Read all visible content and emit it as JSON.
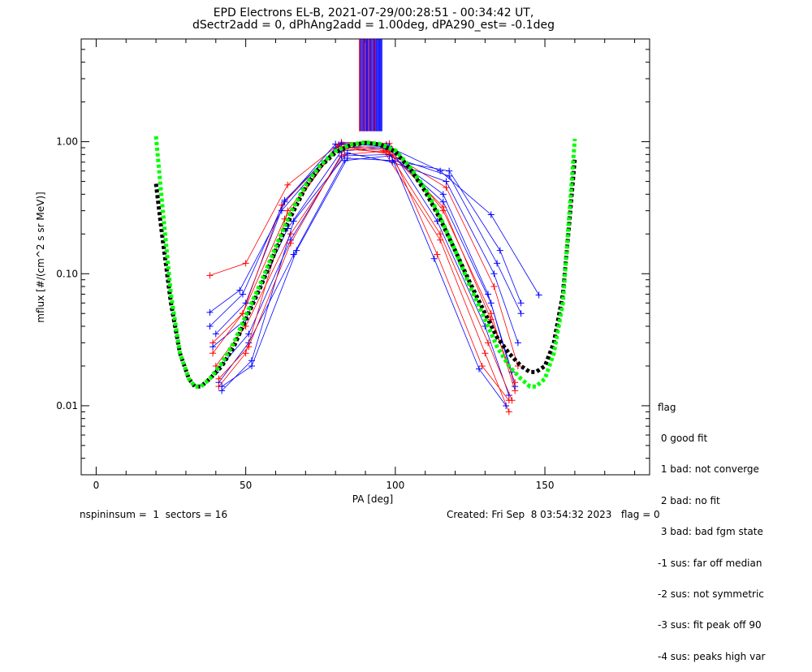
{
  "title_line1": "EPD Electrons EL-B, 2021-07-29/00:28:51 - 00:34:42 UT,",
  "title_line2": "dSectr2add = 0, dPhAng2add = 1.00deg, dPA290_est=  -0.1deg",
  "footer": {
    "left": "nspininsum =  1  sectors = 16",
    "right": "Created: Fri Sep  8 03:54:32 2023   flag = 0"
  },
  "legend": {
    "title": "flag",
    "items": [
      " 0 good fit",
      " 1 bad: not converge",
      " 2 bad: no fit",
      " 3 bad: bad fgm state",
      "-1 sus: far off median",
      "-2 sus: not symmetric",
      "-3 sus: fit peak off 90",
      "-4 sus: peaks high var"
    ]
  },
  "colors": {
    "red": "#ff0000",
    "blue": "#0000ff",
    "green": "#00ff00",
    "black": "#000000"
  },
  "chart_data": {
    "type": "line",
    "xlabel": "PA [deg]",
    "ylabel": "mflux [#/(cm^2 s sr MeV)]",
    "xlim": [
      -5,
      185
    ],
    "ylim": [
      0.003,
      6.0
    ],
    "yscale": "log",
    "xticks": [
      0,
      50,
      100,
      150
    ],
    "xtick_labels": [
      "0",
      "50",
      "100",
      "150"
    ],
    "yticks": [
      0.01,
      0.1,
      1.0
    ],
    "ytick_labels": [
      "0.01",
      "0.10",
      "1.00"
    ],
    "series": [
      {
        "color": "#ff0000",
        "x": [
          38,
          50,
          64,
          82,
          98,
          116,
          132,
          140
        ],
        "y": [
          0.097,
          0.12,
          0.47,
          0.99,
          0.97,
          0.3,
          0.05,
          0.013
        ]
      },
      {
        "color": "#0000ff",
        "x": [
          38,
          48,
          62,
          80,
          98,
          114,
          130,
          138
        ],
        "y": [
          0.051,
          0.075,
          0.3,
          0.9,
          0.92,
          0.25,
          0.04,
          0.012
        ]
      },
      {
        "color": "#ff0000",
        "x": [
          39,
          49,
          63,
          81,
          97,
          115,
          131,
          139
        ],
        "y": [
          0.03,
          0.05,
          0.26,
          0.95,
          0.88,
          0.2,
          0.03,
          0.011
        ]
      },
      {
        "color": "#0000ff",
        "x": [
          39,
          50,
          64,
          82,
          96,
          116,
          132,
          140
        ],
        "y": [
          0.028,
          0.045,
          0.22,
          0.85,
          0.9,
          0.35,
          0.06,
          0.014
        ]
      },
      {
        "color": "#ff0000",
        "x": [
          40,
          50,
          65,
          83,
          97,
          117,
          133,
          141
        ],
        "y": [
          0.02,
          0.04,
          0.2,
          0.8,
          0.85,
          0.45,
          0.08,
          0.02
        ]
      },
      {
        "color": "#0000ff",
        "x": [
          40,
          51,
          65,
          82,
          98,
          116,
          131,
          139
        ],
        "y": [
          0.018,
          0.035,
          0.18,
          0.78,
          0.8,
          0.4,
          0.07,
          0.018
        ]
      },
      {
        "color": "#0000ff",
        "x": [
          41,
          51,
          66,
          83,
          98,
          118,
          134,
          142
        ],
        "y": [
          0.015,
          0.03,
          0.14,
          0.72,
          0.78,
          0.55,
          0.12,
          0.05
        ]
      },
      {
        "color": "#ff0000",
        "x": [
          41,
          50,
          64,
          81,
          96,
          115,
          130,
          138
        ],
        "y": [
          0.014,
          0.025,
          0.3,
          0.92,
          0.86,
          0.18,
          0.025,
          0.009
        ]
      },
      {
        "color": "#0000ff",
        "x": [
          42,
          52,
          66,
          84,
          99,
          117,
          133,
          141
        ],
        "y": [
          0.013,
          0.022,
          0.25,
          0.82,
          0.7,
          0.5,
          0.1,
          0.03
        ]
      },
      {
        "color": "#0000ff",
        "x": [
          40,
          50,
          63,
          80,
          97,
          115,
          132,
          148
        ],
        "y": [
          0.035,
          0.06,
          0.35,
          0.96,
          0.93,
          0.6,
          0.28,
          0.069
        ]
      },
      {
        "color": "#ff0000",
        "x": [
          39,
          49,
          62,
          81,
          99,
          114,
          129,
          138
        ],
        "y": [
          0.025,
          0.05,
          0.33,
          0.93,
          0.8,
          0.14,
          0.02,
          0.011
        ]
      },
      {
        "color": "#0000ff",
        "x": [
          38,
          49,
          63,
          82,
          97,
          113,
          128,
          137
        ],
        "y": [
          0.04,
          0.07,
          0.36,
          0.97,
          0.95,
          0.13,
          0.019,
          0.01
        ]
      },
      {
        "color": "#ff0000",
        "x": [
          41,
          51,
          65,
          83,
          98,
          116,
          132,
          140
        ],
        "y": [
          0.016,
          0.028,
          0.17,
          0.88,
          0.83,
          0.32,
          0.045,
          0.015
        ]
      },
      {
        "color": "#0000ff",
        "x": [
          42,
          52,
          67,
          84,
          99,
          118,
          135,
          142
        ],
        "y": [
          0.014,
          0.02,
          0.15,
          0.75,
          0.72,
          0.6,
          0.15,
          0.06
        ]
      }
    ],
    "fits": [
      {
        "color": "#000000",
        "x": [
          20,
          22,
          25,
          28,
          31,
          33,
          35,
          38,
          42,
          46,
          50,
          55,
          60,
          65,
          70,
          75,
          80,
          85,
          90,
          95,
          100,
          105,
          110,
          115,
          120,
          125,
          130,
          134,
          138,
          142,
          145,
          147,
          150,
          153,
          156,
          158,
          160
        ],
        "y": [
          0.48,
          0.2,
          0.06,
          0.025,
          0.016,
          0.014,
          0.014,
          0.016,
          0.02,
          0.028,
          0.045,
          0.08,
          0.15,
          0.27,
          0.45,
          0.65,
          0.83,
          0.94,
          0.98,
          0.95,
          0.84,
          0.62,
          0.42,
          0.26,
          0.15,
          0.085,
          0.05,
          0.033,
          0.025,
          0.02,
          0.018,
          0.018,
          0.02,
          0.03,
          0.07,
          0.22,
          0.75
        ]
      },
      {
        "color": "#00ff00",
        "x": [
          20,
          22,
          25,
          28,
          31,
          33,
          35,
          38,
          42,
          46,
          50,
          55,
          60,
          65,
          70,
          75,
          80,
          85,
          90,
          95,
          100,
          105,
          110,
          115,
          120,
          125,
          130,
          134,
          138,
          142,
          145,
          147,
          150,
          153,
          156,
          158,
          160
        ],
        "y": [
          1.1,
          0.35,
          0.07,
          0.025,
          0.016,
          0.014,
          0.014,
          0.016,
          0.021,
          0.03,
          0.048,
          0.085,
          0.16,
          0.29,
          0.47,
          0.67,
          0.85,
          0.95,
          0.99,
          0.96,
          0.86,
          0.64,
          0.44,
          0.27,
          0.15,
          0.08,
          0.045,
          0.028,
          0.02,
          0.016,
          0.014,
          0.014,
          0.016,
          0.025,
          0.06,
          0.25,
          1.05
        ]
      }
    ],
    "vlines": {
      "x": [
        88,
        88.3,
        88.6,
        88.9,
        89.2,
        89.5,
        89.8,
        90.1,
        90.4,
        90.7,
        91,
        91.3,
        91.6,
        91.9,
        92.2,
        92.5,
        92.8,
        93.1,
        93.4,
        93.7,
        94,
        94.3,
        94.6,
        94.9,
        95.2,
        95.5
      ],
      "colors": [
        "#ff0000",
        "#0000ff",
        "#0000ff",
        "#ff0000",
        "#0000ff",
        "#0000ff",
        "#0000ff",
        "#ff0000",
        "#0000ff",
        "#0000ff",
        "#ff0000",
        "#0000ff",
        "#0000ff",
        "#0000ff",
        "#ff0000",
        "#0000ff",
        "#0000ff",
        "#0000ff",
        "#ff0000",
        "#0000ff",
        "#0000ff",
        "#0000ff",
        "#0000ff",
        "#0000ff",
        "#0000ff",
        "#0000ff"
      ],
      "y_low": 1.2,
      "y_high": 6.0
    }
  }
}
